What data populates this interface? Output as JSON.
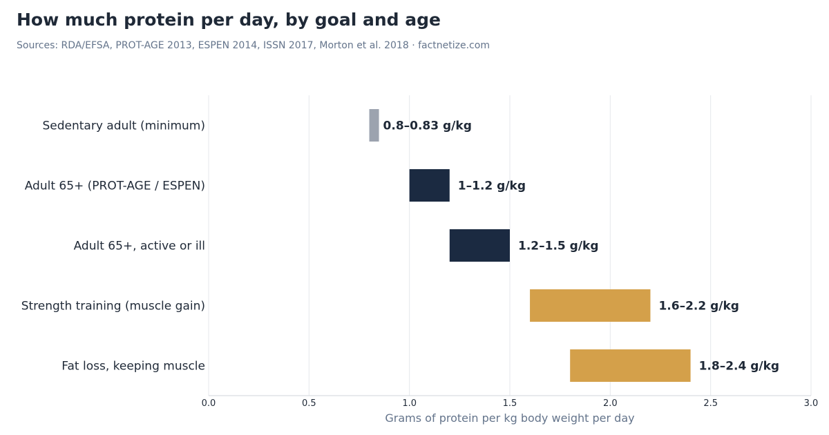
{
  "header": {
    "title": "How much protein per day, by goal and age",
    "subtitle": "Sources: RDA/EFSA, PROT-AGE 2013, ESPEN 2014, ISSN 2017, Morton et al. 2018  ·  factnetize.com"
  },
  "colors": {
    "grey": "#9ca3af",
    "navy": "#1b2a41",
    "gold": "#d4a04a",
    "grid": "#e5e7eb",
    "axis": "#d1d5db"
  },
  "chart_data": {
    "type": "bar",
    "orientation": "horizontal-range",
    "title": "How much protein per day, by goal and age",
    "xlabel": "Grams of protein per kg body weight per day",
    "ylabel": "",
    "xlim": [
      0,
      3.0
    ],
    "xticks": [
      "0.0",
      "0.5",
      "1.0",
      "1.5",
      "2.0",
      "2.5",
      "3.0"
    ],
    "grid": "vertical",
    "legend": "none",
    "categories": [
      "Sedentary adult (minimum)",
      "Adult 65+ (PROT-AGE / ESPEN)",
      "Adult 65+, active or ill",
      "Strength training (muscle gain)",
      "Fat loss, keeping muscle"
    ],
    "ranges": [
      {
        "low": 0.8,
        "high": 0.83,
        "label": "0.8–0.83 g/kg",
        "color": "grey"
      },
      {
        "low": 1.0,
        "high": 1.2,
        "label": "1–1.2 g/kg",
        "color": "navy"
      },
      {
        "low": 1.2,
        "high": 1.5,
        "label": "1.2–1.5 g/kg",
        "color": "navy"
      },
      {
        "low": 1.6,
        "high": 2.2,
        "label": "1.6–2.2 g/kg",
        "color": "gold"
      },
      {
        "low": 1.8,
        "high": 2.4,
        "label": "1.8–2.4 g/kg",
        "color": "gold"
      }
    ]
  }
}
